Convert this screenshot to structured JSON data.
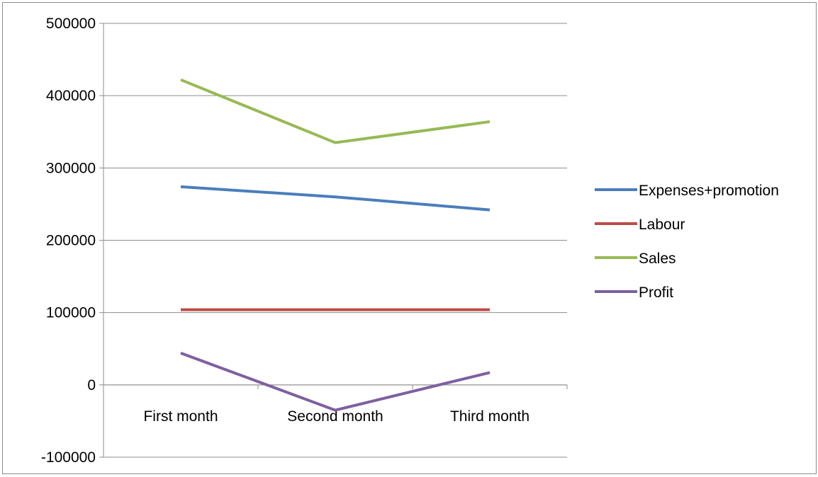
{
  "chart_data": {
    "type": "line",
    "title": "",
    "xlabel": "",
    "ylabel": "",
    "categories": [
      "First month",
      "Second month",
      "Third month"
    ],
    "ylim": [
      -100000,
      500000
    ],
    "yticks": [
      500000,
      400000,
      300000,
      200000,
      100000,
      0,
      -100000
    ],
    "grid": true,
    "legend_position": "right",
    "series": [
      {
        "name": "Expenses+promotion",
        "color": "#4a7ebb",
        "values": [
          274000,
          260000,
          242000
        ]
      },
      {
        "name": "Labour",
        "color": "#be4b48",
        "values": [
          104000,
          104000,
          104000
        ]
      },
      {
        "name": "Sales",
        "color": "#98b954",
        "values": [
          422000,
          335000,
          364000
        ]
      },
      {
        "name": "Profit",
        "color": "#7d60a0",
        "values": [
          44000,
          -35000,
          17000
        ]
      }
    ]
  }
}
